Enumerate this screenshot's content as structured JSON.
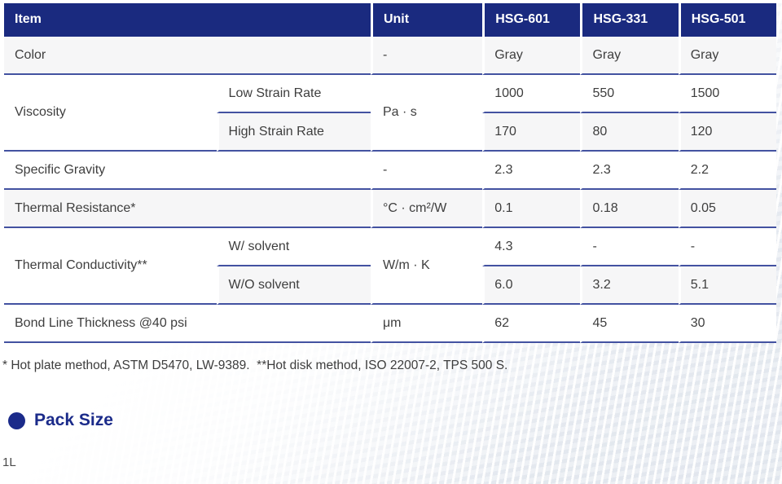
{
  "table": {
    "headers": {
      "item": "Item",
      "unit": "Unit",
      "col1": "HSG-601",
      "col2": "HSG-331",
      "col3": "HSG-501"
    },
    "rows": {
      "color": {
        "item": "Color",
        "unit": "-",
        "v1": "Gray",
        "v2": "Gray",
        "v3": "Gray"
      },
      "viscosity": {
        "item": "Viscosity",
        "unit": "Pa · s",
        "low": {
          "label": "Low Strain Rate",
          "v1": "1000",
          "v2": "550",
          "v3": "1500"
        },
        "high": {
          "label": "High Strain Rate",
          "v1": "170",
          "v2": "80",
          "v3": "120"
        }
      },
      "specific_gravity": {
        "item": "Specific Gravity",
        "unit": "-",
        "v1": "2.3",
        "v2": "2.3",
        "v3": "2.2"
      },
      "thermal_resistance": {
        "item": "Thermal Resistance*",
        "unit": "°C · cm²/W",
        "v1": "0.1",
        "v2": "0.18",
        "v3": "0.05"
      },
      "thermal_conductivity": {
        "item": "Thermal Conductivity**",
        "unit": "W/m · K",
        "with_solvent": {
          "label": "W/ solvent",
          "v1": "4.3",
          "v2": "-",
          "v3": "-"
        },
        "without_solvent": {
          "label": "W/O solvent",
          "v1": "6.0",
          "v2": "3.2",
          "v3": "5.1"
        }
      },
      "bond_line": {
        "item": "Bond Line Thickness @40 psi",
        "unit": "μm",
        "v1": "62",
        "v2": "45",
        "v3": "30"
      }
    }
  },
  "footnote": "* Hot plate method, ASTM D5470, LW-9389.  **Hot disk method, ISO 22007-2, TPS 500 S.",
  "pack_size": {
    "title": "Pack Size",
    "value": "1L"
  },
  "colors": {
    "header_bg": "#1a2a7f",
    "divider": "#4352a1",
    "accent": "#1b2b8a",
    "stripe": "#f6f6f7"
  }
}
